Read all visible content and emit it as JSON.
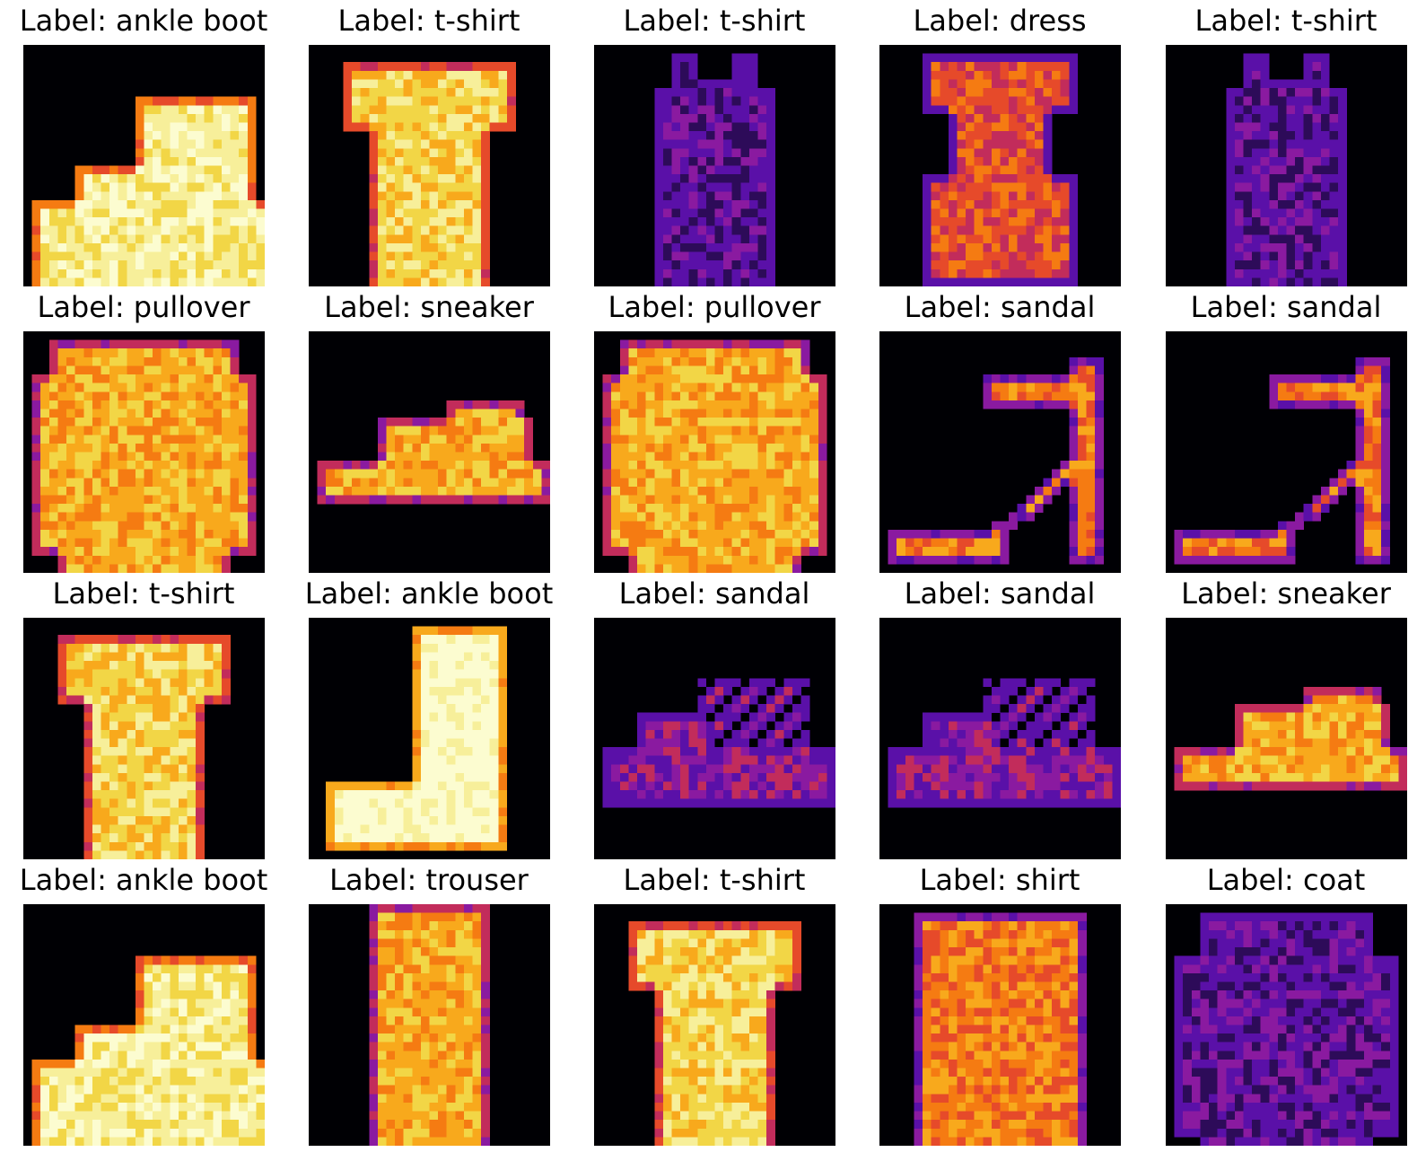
{
  "colormap": [
    "#000004",
    "#2d0b59",
    "#5a10a8",
    "#8a1aa0",
    "#c22c5b",
    "#e64a2a",
    "#f57b12",
    "#f8a91c",
    "#f2d646",
    "#f7ef9a",
    "#fcfcd0"
  ],
  "samples": [
    {
      "title": "Label: ankle boot",
      "item": "ankle-boot-image"
    },
    {
      "title": "Label: t-shirt",
      "item": "t-shirt-image"
    },
    {
      "title": "Label: t-shirt",
      "item": "tank-top-image"
    },
    {
      "title": "Label: dress",
      "item": "dress-image"
    },
    {
      "title": "Label: t-shirt",
      "item": "tank-top-image"
    },
    {
      "title": "Label: pullover",
      "item": "pullover-image"
    },
    {
      "title": "Label: sneaker",
      "item": "sneaker-image"
    },
    {
      "title": "Label: pullover",
      "item": "pullover-image"
    },
    {
      "title": "Label: sandal",
      "item": "high-heel-sandal-image"
    },
    {
      "title": "Label: sandal",
      "item": "high-heel-sandal-image"
    },
    {
      "title": "Label: t-shirt",
      "item": "t-shirt-image"
    },
    {
      "title": "Label: ankle boot",
      "item": "heeled-boot-image"
    },
    {
      "title": "Label: sandal",
      "item": "flat-sandal-image"
    },
    {
      "title": "Label: sandal",
      "item": "flat-sandal-image"
    },
    {
      "title": "Label: sneaker",
      "item": "sneaker-image"
    },
    {
      "title": "Label: ankle boot",
      "item": "ankle-boot-image"
    },
    {
      "title": "Label: trouser",
      "item": "trouser-image"
    },
    {
      "title": "Label: t-shirt",
      "item": "t-shirt-image"
    },
    {
      "title": "Label: shirt",
      "item": "shirt-image"
    },
    {
      "title": "Label: coat",
      "item": "coat-image"
    }
  ]
}
